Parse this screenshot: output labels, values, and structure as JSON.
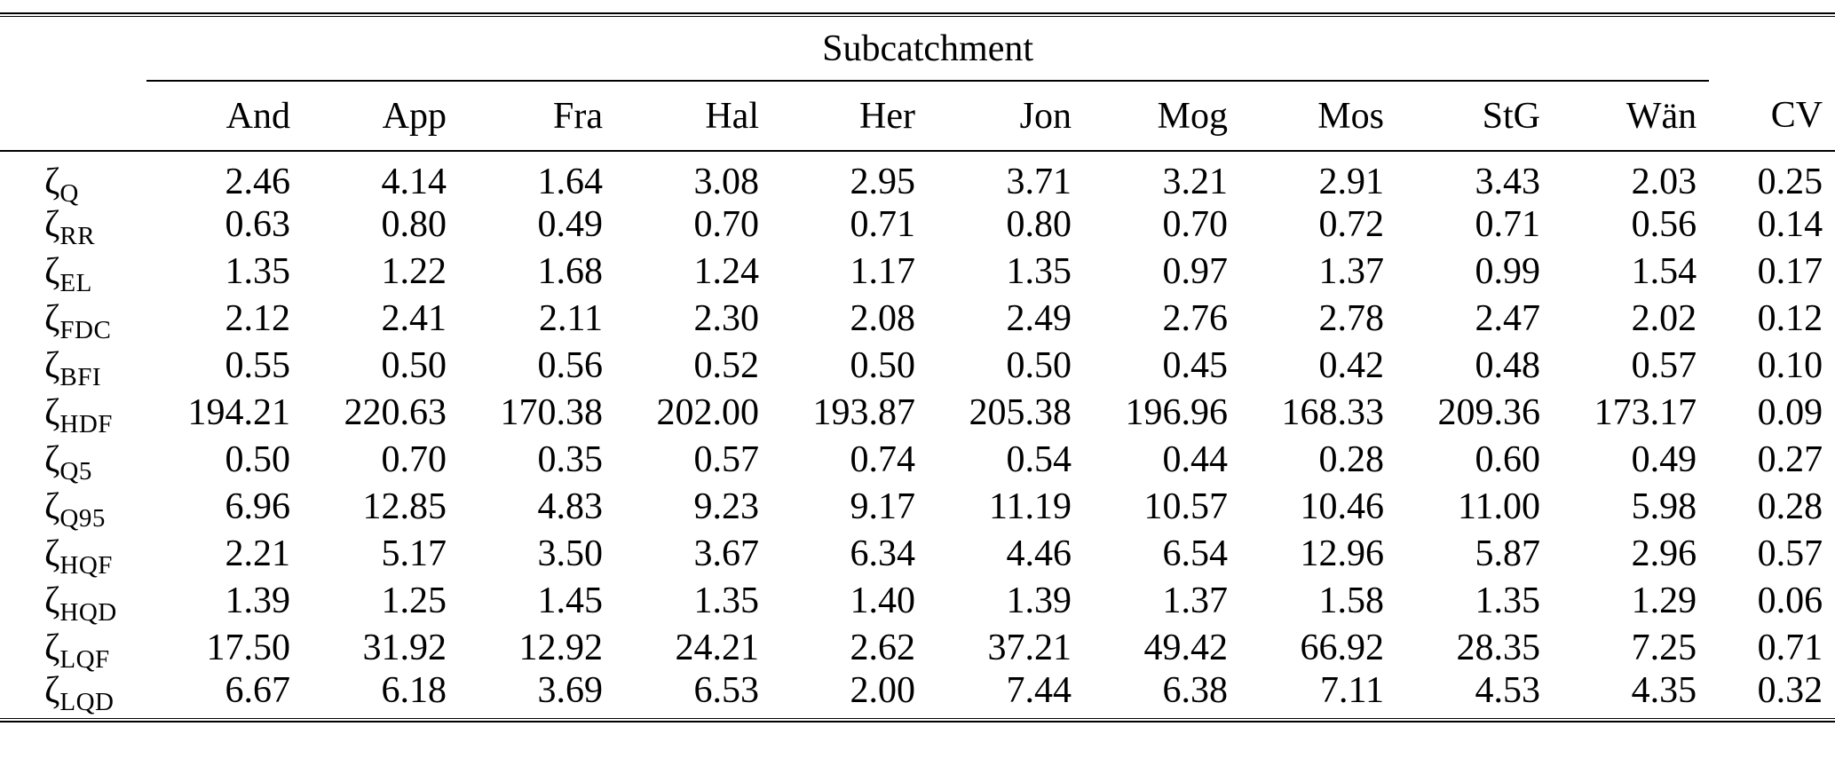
{
  "table": {
    "group_header": "Subcatchment",
    "columns": [
      "And",
      "App",
      "Fra",
      "Hal",
      "Her",
      "Jon",
      "Mog",
      "Mos",
      "StG",
      "Wän",
      "CV"
    ],
    "row_symbol": "ζ",
    "rows": [
      {
        "symbol": "ζ",
        "subscript": "Q",
        "values": [
          "2.46",
          "4.14",
          "1.64",
          "3.08",
          "2.95",
          "3.71",
          "3.21",
          "2.91",
          "3.43",
          "2.03",
          "0.25"
        ]
      },
      {
        "symbol": "ζ",
        "subscript": "RR",
        "values": [
          "0.63",
          "0.80",
          "0.49",
          "0.70",
          "0.71",
          "0.80",
          "0.70",
          "0.72",
          "0.71",
          "0.56",
          "0.14"
        ]
      },
      {
        "symbol": "ζ",
        "subscript": "EL",
        "values": [
          "1.35",
          "1.22",
          "1.68",
          "1.24",
          "1.17",
          "1.35",
          "0.97",
          "1.37",
          "0.99",
          "1.54",
          "0.17"
        ]
      },
      {
        "symbol": "ζ",
        "subscript": "FDC",
        "values": [
          "2.12",
          "2.41",
          "2.11",
          "2.30",
          "2.08",
          "2.49",
          "2.76",
          "2.78",
          "2.47",
          "2.02",
          "0.12"
        ]
      },
      {
        "symbol": "ζ",
        "subscript": "BFI",
        "values": [
          "0.55",
          "0.50",
          "0.56",
          "0.52",
          "0.50",
          "0.50",
          "0.45",
          "0.42",
          "0.48",
          "0.57",
          "0.10"
        ]
      },
      {
        "symbol": "ζ",
        "subscript": "HDF",
        "values": [
          "194.21",
          "220.63",
          "170.38",
          "202.00",
          "193.87",
          "205.38",
          "196.96",
          "168.33",
          "209.36",
          "173.17",
          "0.09"
        ]
      },
      {
        "symbol": "ζ",
        "subscript": "Q5",
        "values": [
          "0.50",
          "0.70",
          "0.35",
          "0.57",
          "0.74",
          "0.54",
          "0.44",
          "0.28",
          "0.60",
          "0.49",
          "0.27"
        ]
      },
      {
        "symbol": "ζ",
        "subscript": "Q95",
        "values": [
          "6.96",
          "12.85",
          "4.83",
          "9.23",
          "9.17",
          "11.19",
          "10.57",
          "10.46",
          "11.00",
          "5.98",
          "0.28"
        ]
      },
      {
        "symbol": "ζ",
        "subscript": "HQF",
        "values": [
          "2.21",
          "5.17",
          "3.50",
          "3.67",
          "6.34",
          "4.46",
          "6.54",
          "12.96",
          "5.87",
          "2.96",
          "0.57"
        ]
      },
      {
        "symbol": "ζ",
        "subscript": "HQD",
        "values": [
          "1.39",
          "1.25",
          "1.45",
          "1.35",
          "1.40",
          "1.39",
          "1.37",
          "1.58",
          "1.35",
          "1.29",
          "0.06"
        ]
      },
      {
        "symbol": "ζ",
        "subscript": "LQF",
        "values": [
          "17.50",
          "31.92",
          "12.92",
          "24.21",
          "2.62",
          "37.21",
          "49.42",
          "66.92",
          "28.35",
          "7.25",
          "0.71"
        ]
      },
      {
        "symbol": "ζ",
        "subscript": "LQD",
        "values": [
          "6.67",
          "6.18",
          "3.69",
          "6.53",
          "2.00",
          "7.44",
          "6.38",
          "7.11",
          "4.53",
          "4.35",
          "0.32"
        ]
      }
    ]
  }
}
